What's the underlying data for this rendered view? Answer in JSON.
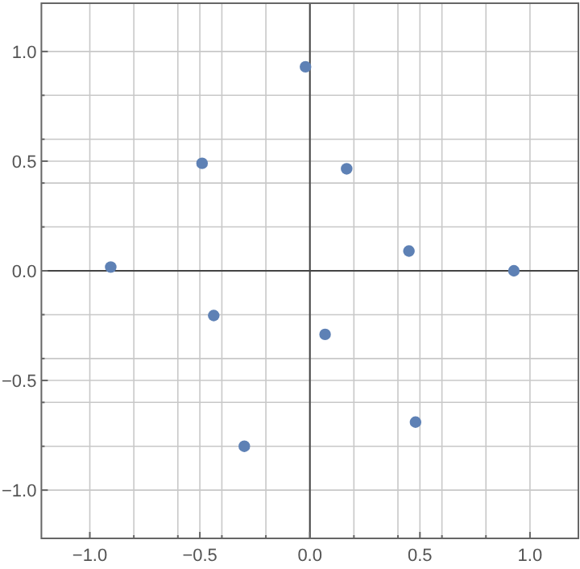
{
  "chart_data": {
    "type": "scatter",
    "x": [
      -0.905,
      -0.49,
      -0.02,
      0.167,
      0.45,
      0.927,
      -0.437,
      0.069,
      -0.298,
      0.48
    ],
    "series": [
      {
        "color": "#5e81b5",
        "values": [
          0.017,
          0.49,
          0.93,
          0.465,
          0.09,
          0.0,
          -0.204,
          -0.29,
          -0.8,
          -0.69
        ]
      }
    ],
    "xlim": [
      -1.22,
      1.22
    ],
    "ylim": [
      -1.22,
      1.22
    ],
    "xticks": [
      {
        "value": -1,
        "label": "−1.0"
      },
      {
        "value": -0.8,
        "label": null
      },
      {
        "value": -0.6,
        "label": null
      },
      -0.5,
      {
        "value": -0.4,
        "label": null
      },
      {
        "value": -0.2,
        "label": null
      },
      {
        "value": 0,
        "label": "0.0"
      },
      {
        "value": 0.2,
        "label": null
      },
      {
        "value": 0.4,
        "label": null
      },
      0.5,
      {
        "value": 0.6,
        "label": null
      },
      {
        "value": 0.8,
        "label": null
      },
      {
        "value": 1,
        "label": "1.0"
      }
    ],
    "yticks": [
      {
        "value": -1,
        "label": "−1.0"
      },
      {
        "value": -0.8,
        "label": null
      },
      {
        "value": -0.6,
        "label": null
      },
      -0.5,
      {
        "value": -0.4,
        "label": null
      },
      {
        "value": -0.2,
        "label": null
      },
      {
        "value": 0,
        "label": "0.0"
      },
      {
        "value": 0.2,
        "label": null
      },
      {
        "value": 0.4,
        "label": null
      },
      0.5,
      {
        "value": 0.6,
        "label": null
      },
      {
        "value": 0.8,
        "label": null
      },
      {
        "value": 1,
        "label": "1.0"
      }
    ],
    "grid": true,
    "marker": "circle"
  }
}
